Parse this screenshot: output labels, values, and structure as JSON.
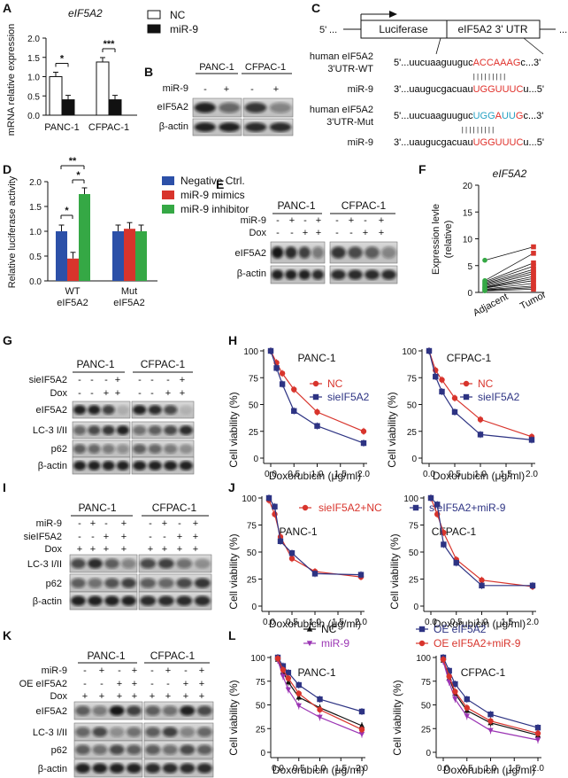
{
  "colors": {
    "red": "#d8342c",
    "navy": "#2d3383",
    "blue": "#2c50a8",
    "green": "#35a845",
    "black": "#111111",
    "purple": "#9b35b4",
    "seqRed": "#e0302a",
    "seqCyan": "#27a2c4"
  },
  "panels": {
    "A": "A",
    "B": "B",
    "C": "C",
    "D": "D",
    "E": "E",
    "F": "F",
    "G": "G",
    "H": "H",
    "I": "I",
    "J": "J",
    "K": "K",
    "L": "L"
  },
  "common": {
    "plus": "+",
    "minus": "-",
    "beta_actin": "β-actin",
    "panc1": "PANC-1",
    "cfpac1": "CFPAC-1",
    "doxo_xlabel": "Doxorubicin (μg/ml)",
    "viability_ylabel": "Cell viability (%)",
    "eIF5A2": "eIF5A2",
    "mir9": "miR-9",
    "dox": "Dox",
    "lc3": "LC-3 I/II",
    "p62": "p62",
    "sieIF5A2": "sieIF5A2",
    "oe_eIF5A2": "OE eIF5A2"
  },
  "panel_a": {
    "title": "eIF5A2",
    "ylabel": "mRNA relative expression",
    "legend": [
      "NC",
      "miR-9"
    ],
    "chart_data": {
      "type": "bar",
      "title": "eIF5A2",
      "categories": [
        "PANC-1",
        "CFPAC-1"
      ],
      "series": [
        {
          "name": "NC",
          "values": [
            1.0,
            1.38
          ]
        },
        {
          "name": "miR-9",
          "values": [
            0.4,
            0.4
          ]
        }
      ],
      "ylabel": "mRNA relative expression",
      "ylim": [
        0,
        2.0
      ],
      "yticks": [
        "0.0",
        "0.5",
        "1.0",
        "1.5",
        "2.0"
      ],
      "significance": [
        "*",
        "***"
      ]
    }
  },
  "panel_c": {
    "five_prime": "5'",
    "dots": "...",
    "luciferase": "Luciferase",
    "utr": "eIF5A2  3' UTR",
    "wt_label": [
      "human eIF5A2",
      "3'UTR-WT"
    ],
    "mut_label": [
      "human eIF5A2",
      "3'UTR-Mut"
    ],
    "mir9_label": "miR-9",
    "wt_seq": {
      "pre": "5'...uucuaaguuguc",
      "red": "ACCAAAG",
      "post": "c...3'"
    },
    "mir_seq": {
      "pre": "3'...uaugucgacuau",
      "red": "UGGUUUC",
      "post": "u...5'"
    },
    "mut_seq": {
      "pre": "5'...uucuaaguuguc",
      "p1": "UGG",
      "p2": "A",
      "p3": "UU",
      "p4": "G",
      "post": "c...3'"
    },
    "bars": "| | | | | | | | |"
  },
  "panel_d": {
    "ylabel": "Relative luciferase activity",
    "legend": [
      "Negative Ctrl.",
      "miR-9 mimics",
      "miR-9 inhibitor"
    ],
    "xcats": [
      [
        "WT",
        "eIF5A2"
      ],
      [
        "Mut",
        "eIF5A2"
      ]
    ],
    "chart_data": {
      "type": "bar",
      "categories": [
        "WT eIF5A2",
        "Mut eIF5A2"
      ],
      "series": [
        {
          "name": "Negative Ctrl.",
          "values": [
            1.0,
            1.0
          ]
        },
        {
          "name": "miR-9 mimics",
          "values": [
            0.45,
            1.05
          ]
        },
        {
          "name": "miR-9 inhibitor",
          "values": [
            1.75,
            1.0
          ]
        }
      ],
      "ylabel": "Relative luciferase activity",
      "ylim": [
        0,
        2.0
      ],
      "yticks": [
        "0.0",
        "0.5",
        "1.0",
        "1.5",
        "2.0"
      ],
      "significance": [
        "*",
        "**",
        "*"
      ]
    }
  },
  "panel_f": {
    "title": "eIF5A2",
    "ylabel": "Expression levle (relative)",
    "ylabel_lines": [
      "Expression levle",
      "(relative)"
    ],
    "chart_data": {
      "type": "line",
      "title": "eIF5A2",
      "categories": [
        "Adjacent",
        "Tumor"
      ],
      "ylim": [
        0,
        20
      ],
      "yticks": [
        "0",
        "5",
        "10",
        "15",
        "20"
      ],
      "pairs": [
        [
          6.0,
          8.5
        ],
        [
          2.2,
          7.3
        ],
        [
          2.0,
          5.5
        ],
        [
          1.8,
          4.9
        ],
        [
          1.6,
          4.3
        ],
        [
          1.4,
          3.9
        ],
        [
          1.2,
          3.5
        ],
        [
          1.0,
          3.0
        ],
        [
          0.9,
          2.6
        ],
        [
          0.8,
          2.2
        ],
        [
          0.6,
          1.7
        ],
        [
          0.5,
          1.2
        ],
        [
          0.4,
          0.9
        ],
        [
          0.3,
          0.6
        ]
      ]
    }
  },
  "panel_h": {
    "chart_data": [
      {
        "type": "line",
        "title": "PANC-1",
        "xlabel": "Doxorubicin (μg/ml)",
        "ylabel": "Cell viability (%)",
        "xlim": [
          0,
          2.0
        ],
        "ylim": [
          0,
          100
        ],
        "series": [
          {
            "name": "NC",
            "x": [
              0,
              0.125,
              0.25,
              0.5,
              1.0,
              2.0
            ],
            "y": [
              100,
              89,
              79,
              64,
              43,
              25
            ]
          },
          {
            "name": "sieIF5A2",
            "x": [
              0,
              0.125,
              0.25,
              0.5,
              1.0,
              2.0
            ],
            "y": [
              100,
              84,
              69,
              44,
              30,
              14
            ]
          }
        ]
      },
      {
        "type": "line",
        "title": "CFPAC-1",
        "xlabel": "Doxorubicin (μg/ml)",
        "ylabel": "Cell viability (%)",
        "xlim": [
          0,
          2.0
        ],
        "ylim": [
          0,
          100
        ],
        "series": [
          {
            "name": "NC",
            "x": [
              0,
              0.125,
              0.25,
              0.5,
              1.0,
              2.0
            ],
            "y": [
              100,
              82,
              73,
              56,
              36,
              20
            ]
          },
          {
            "name": "sieIF5A2",
            "x": [
              0,
              0.125,
              0.25,
              0.5,
              1.0,
              2.0
            ],
            "y": [
              100,
              76,
              62,
              43,
              22,
              17
            ]
          }
        ]
      }
    ],
    "legend": [
      "NC",
      "sieIF5A2"
    ]
  },
  "panel_j": {
    "legend": [
      "sieIF5A2+NC",
      "sieIF5A2+miR-9"
    ],
    "chart_data": [
      {
        "type": "line",
        "title": "PANC-1",
        "xlabel": "Doxorubicin (μg/ml)",
        "ylabel": "Cell viability (%)",
        "xlim": [
          0,
          2.0
        ],
        "ylim": [
          0,
          100
        ],
        "series": [
          {
            "name": "sieIF5A2+NC",
            "x": [
              0,
              0.125,
              0.25,
              0.5,
              1.0,
              2.0
            ],
            "y": [
              98,
              85,
              64,
              44,
              32,
              27
            ]
          },
          {
            "name": "sieIF5A2+miR-9",
            "x": [
              0,
              0.125,
              0.25,
              0.5,
              1.0,
              2.0
            ],
            "y": [
              100,
              92,
              60,
              49,
              30,
              29
            ]
          }
        ]
      },
      {
        "type": "line",
        "title": "CFPAC-1",
        "xlabel": "Doxorubicin (μg/ml)",
        "ylabel": "Cell viability (%)",
        "xlim": [
          0,
          2.0
        ],
        "ylim": [
          0,
          100
        ],
        "series": [
          {
            "name": "sieIF5A2+NC",
            "x": [
              0,
              0.125,
              0.25,
              0.5,
              1.0,
              2.0
            ],
            "y": [
              100,
              85,
              68,
              43,
              24,
              18
            ]
          },
          {
            "name": "sieIF5A2+miR-9",
            "x": [
              0,
              0.125,
              0.25,
              0.5,
              1.0,
              2.0
            ],
            "y": [
              100,
              94,
              57,
              40,
              19,
              19
            ]
          }
        ]
      }
    ]
  },
  "panel_l": {
    "legend": [
      "NC",
      "OE eIF5A2",
      "miR-9",
      "OE eIF5A2+miR-9"
    ],
    "chart_data": [
      {
        "type": "line",
        "title": "PANC-1",
        "xlabel": "Doxorubicin (μg/ml)",
        "ylabel": "Cell viability (%)",
        "xlim": [
          0,
          2.0
        ],
        "ylim": [
          0,
          100
        ],
        "yticks": [
          "0",
          "25",
          "50",
          "75",
          "100"
        ],
        "series": [
          {
            "name": "NC",
            "x": [
              0,
              0.125,
              0.25,
              0.5,
              1.0,
              2.0
            ],
            "y": [
              98,
              85,
              74,
              58,
              47,
              28
            ]
          },
          {
            "name": "OE eIF5A2",
            "x": [
              0,
              0.125,
              0.25,
              0.5,
              1.0,
              2.0
            ],
            "y": [
              100,
              91,
              84,
              71,
              56,
              43
            ]
          },
          {
            "name": "miR-9",
            "x": [
              0,
              0.125,
              0.25,
              0.5,
              1.0,
              2.0
            ],
            "y": [
              97,
              80,
              66,
              49,
              37,
              19
            ]
          },
          {
            "name": "OE eIF5A2+miR-9",
            "x": [
              0,
              0.125,
              0.25,
              0.5,
              1.0,
              2.0
            ],
            "y": [
              99,
              87,
              78,
              62,
              45,
              24
            ]
          }
        ]
      },
      {
        "type": "line",
        "title": "CFPAC-1",
        "xlabel": "Doxorubicin (μg/ml)",
        "ylabel": "Cell viability (%)",
        "xlim": [
          0,
          2.0
        ],
        "ylim": [
          0,
          100
        ],
        "yticks": [
          "0",
          "25",
          "50",
          "75",
          "100"
        ],
        "series": [
          {
            "name": "NC",
            "x": [
              0,
              0.125,
              0.25,
              0.5,
              1.0,
              2.0
            ],
            "y": [
              97,
              78,
              62,
              44,
              31,
              18
            ]
          },
          {
            "name": "OE eIF5A2",
            "x": [
              0,
              0.125,
              0.25,
              0.5,
              1.0,
              2.0
            ],
            "y": [
              100,
              86,
              72,
              56,
              40,
              26
            ]
          },
          {
            "name": "miR-9",
            "x": [
              0,
              0.125,
              0.25,
              0.5,
              1.0,
              2.0
            ],
            "y": [
              96,
              74,
              56,
              38,
              23,
              13
            ]
          },
          {
            "name": "OE eIF5A2+miR-9",
            "x": [
              0,
              0.125,
              0.25,
              0.5,
              1.0,
              2.0
            ],
            "y": [
              98,
              80,
              64,
              47,
              33,
              20
            ]
          }
        ]
      }
    ]
  },
  "axis": {
    "visy": [
      "0",
      "25",
      "50",
      "75",
      "100"
    ],
    "doxx": [
      "0.0",
      "0.5",
      "1.0",
      "1.5",
      "2.0"
    ],
    "bary": [
      "0.0",
      "0.5",
      "1.0",
      "1.5",
      "2.0"
    ]
  }
}
